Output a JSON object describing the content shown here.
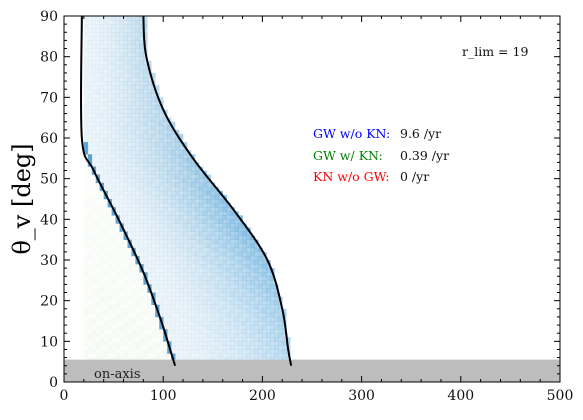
{
  "chart_data": {
    "type": "heatmap",
    "title": "",
    "xlabel": "",
    "ylabel": "θ_v [deg]",
    "xlim": [
      0,
      500
    ],
    "ylim": [
      0,
      90
    ],
    "x_ticks": [
      "0",
      "100",
      "200",
      "300",
      "400",
      "500"
    ],
    "y_ticks": [
      "0",
      "10",
      "20",
      "30",
      "40",
      "50",
      "60",
      "70",
      "80",
      "90"
    ],
    "r_lim_label": "r_lim = 19",
    "rates": [
      {
        "label": "GW w/o KN:",
        "value": "9.6 /yr",
        "color": "#0000ff"
      },
      {
        "label": "GW w/ KN:",
        "value": "0.39 /yr",
        "color": "#008000"
      },
      {
        "label": "KN w/o GW:",
        "value": "0 /yr",
        "color": "#ff0000"
      }
    ],
    "on_axis_band": {
      "label": "on-axis",
      "y_range": [
        0,
        5.5
      ],
      "color": "#bdbdbd"
    },
    "boundary_curves": [
      {
        "name": "KN",
        "points": [
          [
            18,
            90
          ],
          [
            18,
            60
          ],
          [
            30,
            52
          ],
          [
            55,
            40
          ],
          [
            80,
            27
          ],
          [
            98,
            15
          ],
          [
            107,
            8
          ],
          [
            112,
            4
          ]
        ]
      },
      {
        "name": "GW",
        "points": [
          [
            80,
            90
          ],
          [
            83,
            80
          ],
          [
            100,
            67
          ],
          [
            130,
            55
          ],
          [
            172,
            42
          ],
          [
            205,
            30
          ],
          [
            220,
            18
          ],
          [
            226,
            8
          ],
          [
            229,
            4
          ]
        ]
      }
    ],
    "density": {
      "colormap": "Blues",
      "region_x_start": 18,
      "peak_theta": 38,
      "peak_x_offset": 8
    }
  }
}
